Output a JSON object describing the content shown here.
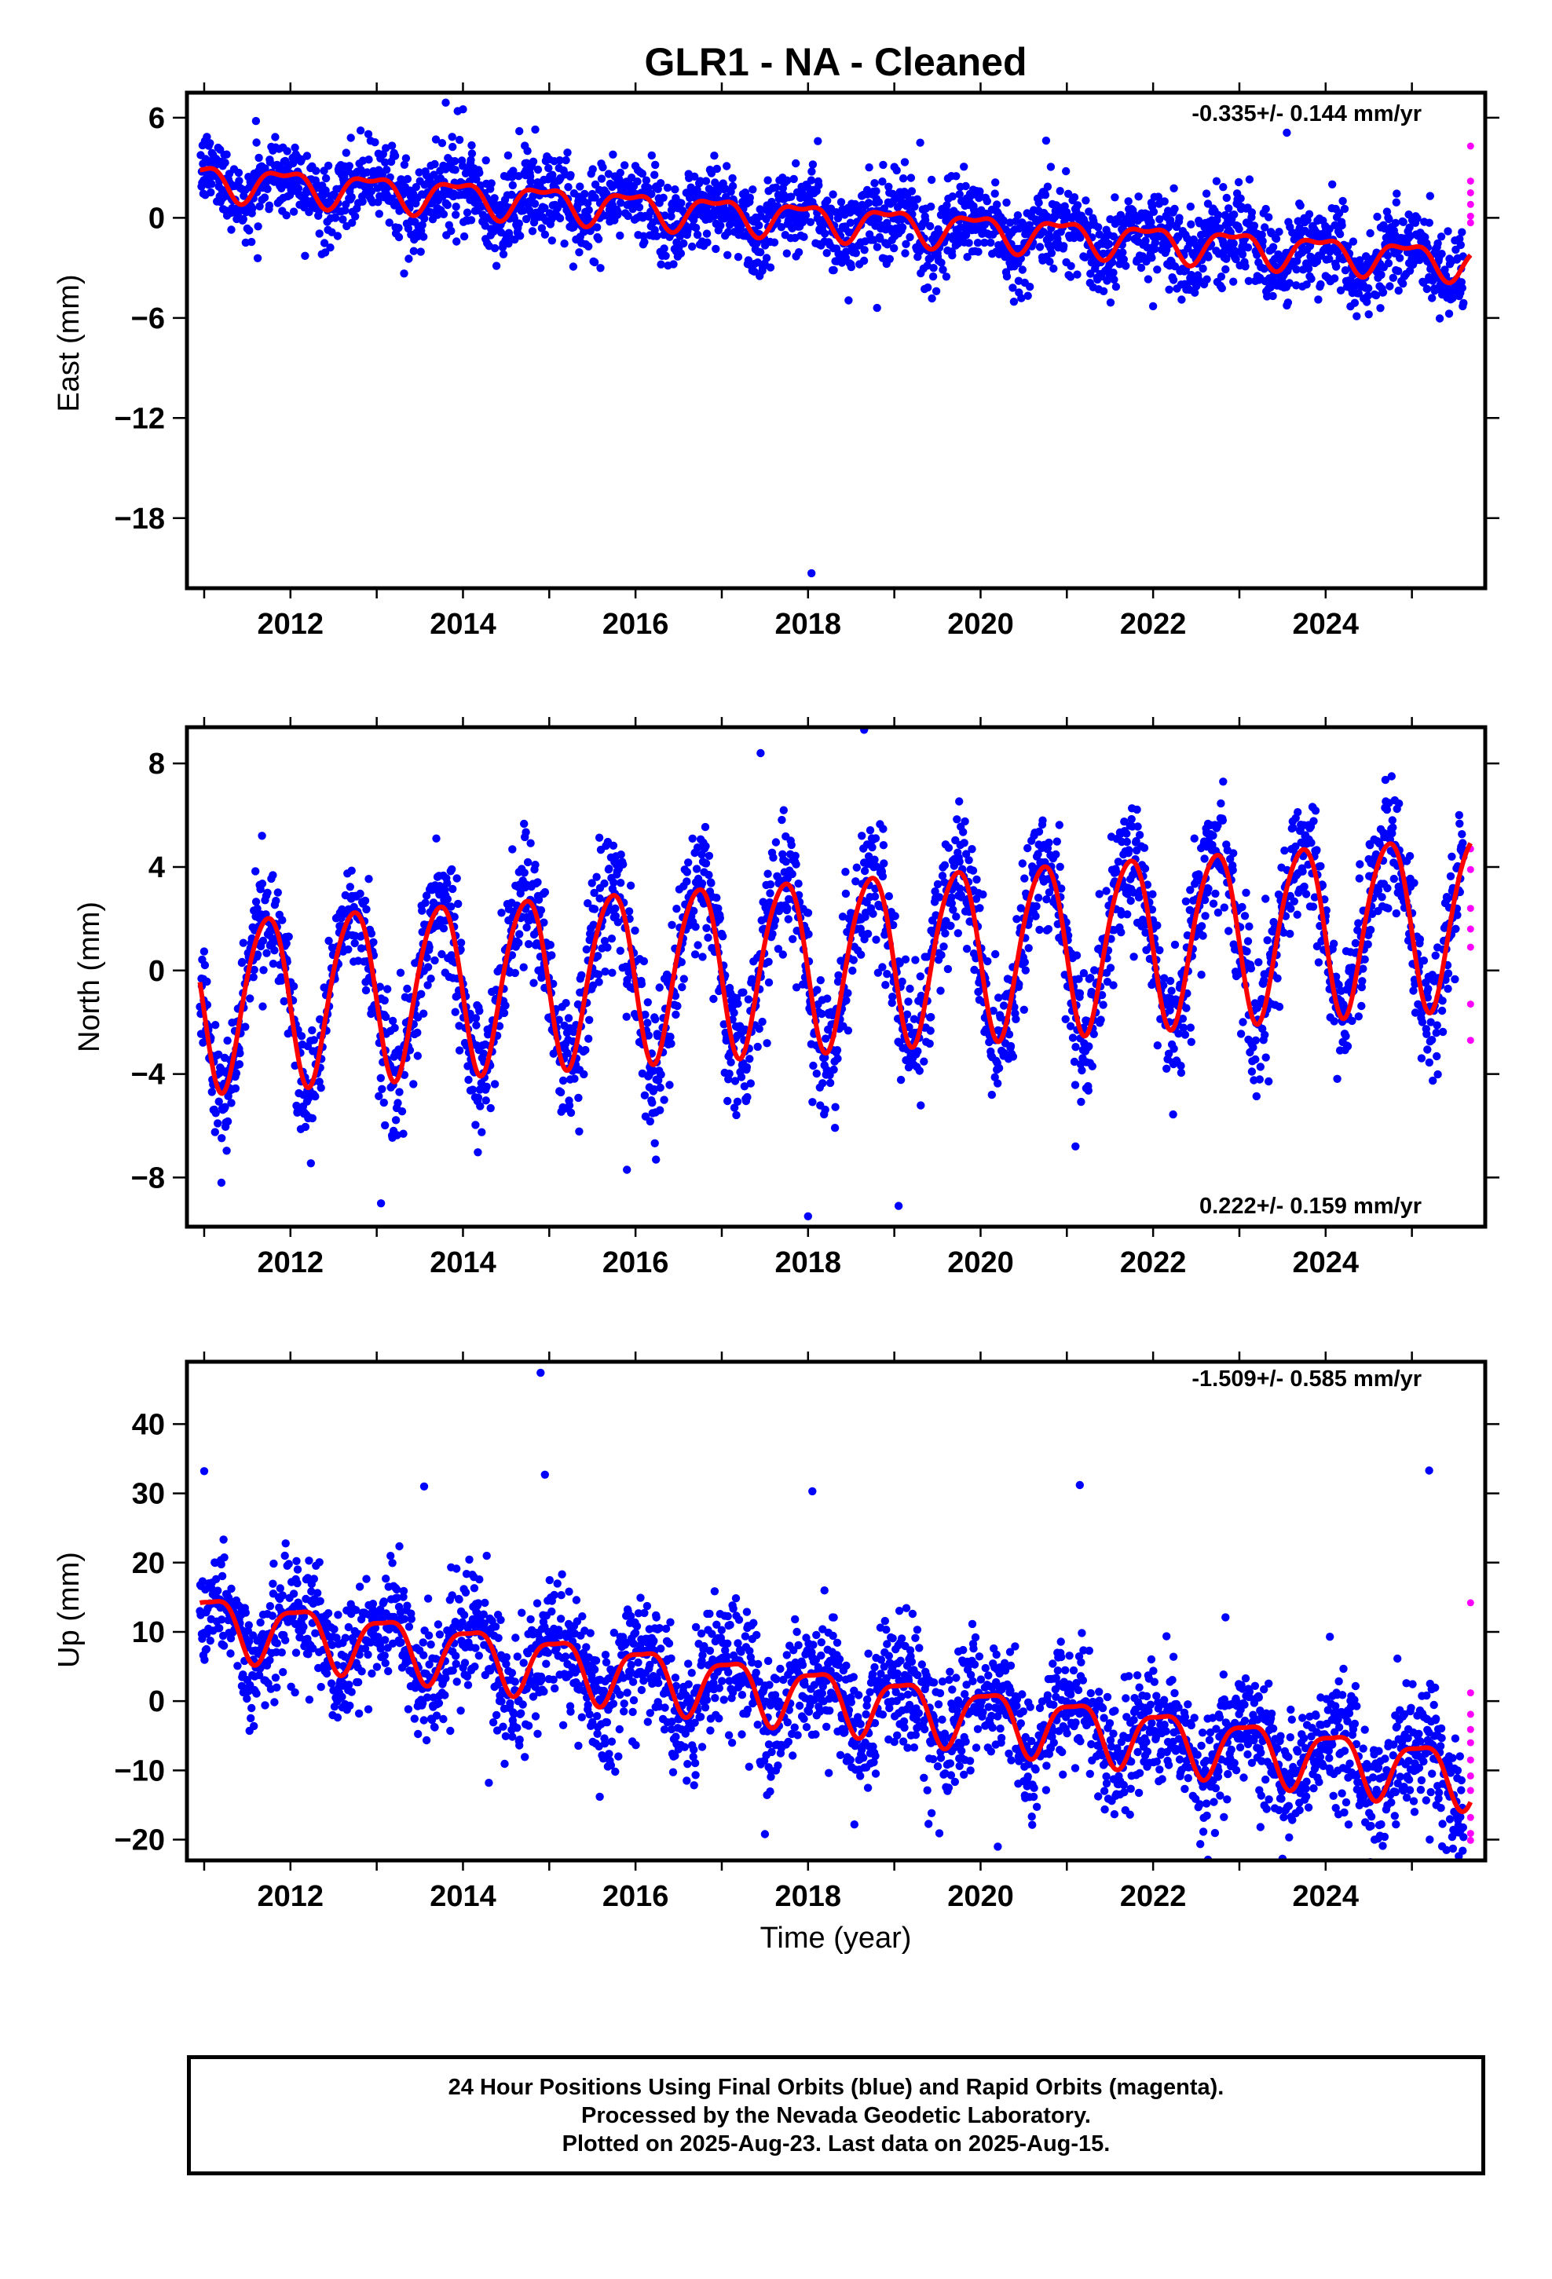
{
  "title": "GLR1  - NA - Cleaned",
  "xlabel": "Time (year)",
  "colors": {
    "final": "#0000ff",
    "rapid": "#ff00ff",
    "model": "#ff0000"
  },
  "chart_data": [
    {
      "type": "scatter",
      "ylabel": "East (mm)",
      "rate": "-0.335+/- 0.144 mm/yr",
      "xlim": [
        2010.8,
        2025.85
      ],
      "ylim": [
        -22.2,
        7.5
      ],
      "xticks": [
        2012,
        2014,
        2016,
        2018,
        2020,
        2022,
        2024
      ],
      "yticks": [
        6,
        0,
        -6,
        -12,
        -18
      ],
      "model": {
        "offset": 2.3,
        "start": 2010.95,
        "slope": -0.335,
        "amp1": 0.95,
        "amp2": 0.4,
        "phase1": 0.68,
        "phase2": 0.55,
        "noise": 1.3
      },
      "series": [
        {
          "values": [
            [
              2011.6,
              5.8
            ],
            [
              2013.8,
              6.9
            ],
            [
              2014.0,
              6.5
            ],
            [
              2018.04,
              -21.3
            ],
            [
              2018.8,
              -5.4
            ],
            [
              2019.3,
              4.5
            ],
            [
              2022.0,
              -5.3
            ],
            [
              2023.55,
              5.1
            ]
          ]
        }
      ]
    },
    {
      "type": "scatter",
      "ylabel": "North (mm)",
      "rate": "0.222+/- 0.159 mm/yr",
      "xlim": [
        2010.8,
        2025.85
      ],
      "ylim": [
        -9.9,
        9.4
      ],
      "xticks": [
        2012,
        2014,
        2016,
        2018,
        2020,
        2022,
        2024
      ],
      "yticks": [
        8,
        4,
        0,
        -4,
        -8
      ],
      "model": {
        "offset": -1.2,
        "start": 2010.95,
        "slope": 0.222,
        "amp1": 3.3,
        "amp2": 0.35,
        "phase1": 0.47,
        "phase2": 0.3,
        "noise": 1.25
      },
      "series": [
        {
          "values": [
            [
              2011.2,
              -8.2
            ],
            [
              2013.05,
              -9.0
            ],
            [
              2015.9,
              -7.7
            ],
            [
              2017.45,
              8.4
            ],
            [
              2018.0,
              -9.5
            ],
            [
              2018.65,
              9.3
            ],
            [
              2019.05,
              -9.1
            ],
            [
              2021.1,
              -6.8
            ]
          ]
        }
      ]
    },
    {
      "type": "scatter",
      "ylabel": "Up (mm)",
      "rate": "-1.509+/- 0.585 mm/yr",
      "xlim": [
        2010.8,
        2025.85
      ],
      "ylim": [
        -23,
        49
      ],
      "xticks": [
        2012,
        2014,
        2016,
        2018,
        2020,
        2022,
        2024
      ],
      "yticks": [
        40,
        30,
        20,
        10,
        0,
        -10,
        -20
      ],
      "model": {
        "offset": 11.5,
        "start": 2010.95,
        "slope": -1.509,
        "amp1": 4.2,
        "amp2": 1.2,
        "phase1": 0.84,
        "phase2": 0.2,
        "noise": 4.6
      },
      "series": [
        {
          "values": [
            [
              2011.0,
              33.2
            ],
            [
              2013.55,
              31.0
            ],
            [
              2014.3,
              -11.8
            ],
            [
              2014.9,
              47.4
            ],
            [
              2014.95,
              32.7
            ],
            [
              2017.5,
              -19.2
            ],
            [
              2018.05,
              30.3
            ],
            [
              2020.2,
              -21.0
            ],
            [
              2021.15,
              31.2
            ],
            [
              2025.2,
              33.3
            ],
            [
              2025.4,
              -21.5
            ]
          ]
        },
        {
          "values": [
            [
              2025.68,
              14.2
            ],
            [
              2025.68,
              1.2
            ],
            [
              2025.68,
              -1.9
            ],
            [
              2025.68,
              -4.1
            ],
            [
              2025.68,
              -6.0
            ],
            [
              2025.68,
              -8.5
            ],
            [
              2025.68,
              -10.8
            ],
            [
              2025.68,
              -12.9
            ],
            [
              2025.68,
              -16.8
            ],
            [
              2025.68,
              -19.1
            ],
            [
              2025.68,
              -20.1
            ]
          ]
        }
      ]
    }
  ],
  "footer": {
    "line1": "24 Hour Positions Using Final Orbits (blue) and Rapid Orbits (magenta).",
    "line2": "Processed by the Nevada Geodetic Laboratory.",
    "line3": "Plotted on 2025-Aug-23. Last data on 2025-Aug-15."
  }
}
